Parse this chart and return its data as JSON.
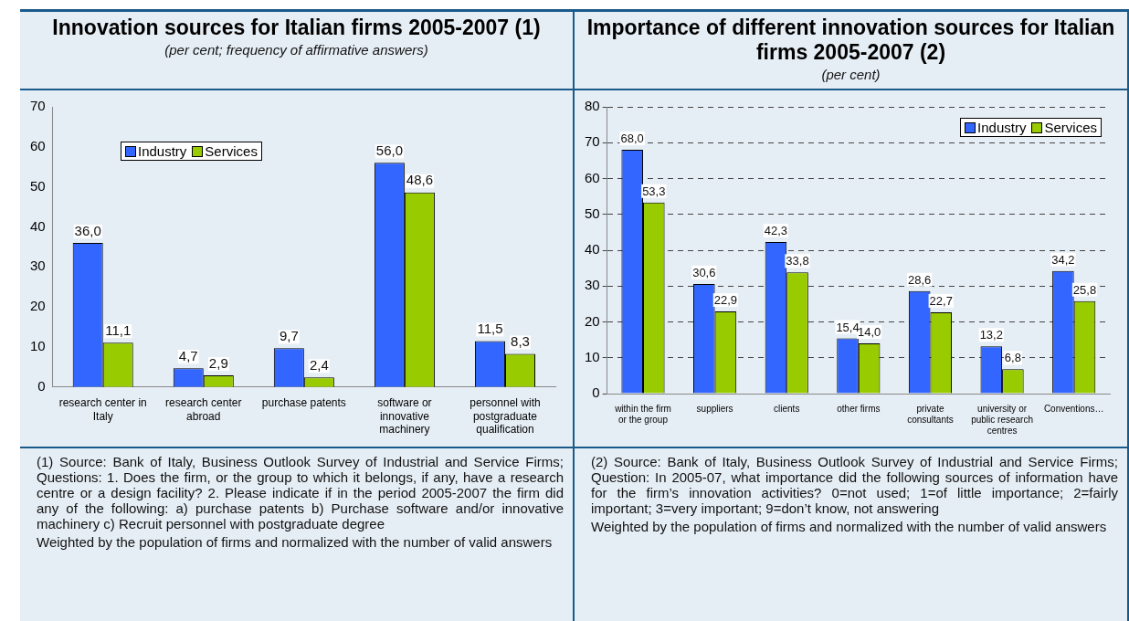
{
  "chart_data": [
    {
      "type": "bar",
      "title": "Innovation sources for Italian firms 2005-2007 (1)",
      "subtitle": "(per cent; frequency of affirmative answers)",
      "categories": [
        "research center in Italy",
        "research center abroad",
        "purchase patents",
        "software or innovative machinery",
        "personnel with postgraduate qualification"
      ],
      "series": [
        {
          "name": "Industry",
          "color": "#3366ff",
          "values": [
            36.0,
            4.7,
            9.7,
            56.0,
            11.5
          ],
          "value_labels": [
            "36,0",
            "4,7",
            "9,7",
            "56,0",
            "11,5"
          ]
        },
        {
          "name": "Services",
          "color": "#99cc00",
          "values": [
            11.1,
            2.9,
            2.4,
            48.6,
            8.3
          ],
          "value_labels": [
            "11,1",
            "2,9",
            "2,4",
            "48,6",
            "8,3"
          ]
        }
      ],
      "ylim": [
        0,
        70
      ],
      "yticks": [
        0,
        10,
        20,
        30,
        40,
        50,
        60,
        70
      ],
      "grid": false,
      "legend": "top left",
      "annotations": [
        "(1) Source: Bank of Italy, Business Outlook Survey of Industrial and Service Firms; Questions: 1. Does the firm, or the group to which it belongs, if any, have a research centre or a design facility? 2. Please indicate if in the period 2005-2007 the firm did any of the following: a) purchase patents b) Purchase software and/or innovative machinery c) Recruit personnel with postgraduate degree",
        "Weighted by the population of firms and normalized with the number of valid answers"
      ]
    },
    {
      "type": "bar",
      "title": "Importance of different innovation sources for Italian firms 2005-2007 (2)",
      "subtitle": "(per cent)",
      "categories": [
        "within the firm or the group",
        "suppliers",
        "clients",
        "other firms",
        "private consultants",
        "university or public research centres",
        "Conventions…"
      ],
      "series": [
        {
          "name": "Industry",
          "color": "#3366ff",
          "values": [
            68.0,
            30.6,
            42.3,
            15.4,
            28.6,
            13.2,
            34.2
          ],
          "value_labels": [
            "68,0",
            "30,6",
            "42,3",
            "15,4",
            "28,6",
            "13,2",
            "34,2"
          ]
        },
        {
          "name": "Services",
          "color": "#99cc00",
          "values": [
            53.3,
            22.9,
            33.8,
            14.0,
            22.7,
            6.8,
            25.8
          ],
          "value_labels": [
            "53,3",
            "22,9",
            "33,8",
            "14,0",
            "22,7",
            "6,8",
            "25,8"
          ]
        }
      ],
      "ylim": [
        0,
        80
      ],
      "yticks": [
        0,
        10,
        20,
        30,
        40,
        50,
        60,
        70,
        80
      ],
      "grid": "y",
      "line_style": "dashed",
      "legend": "top right",
      "annotations": [
        "(2) Source: Bank of Italy, Business Outlook Survey of Industrial and Service Firms; Question: In 2005-07, what importance did the following sources of information have for the firm’s innovation activities? 0=not used; 1=of little importance; 2=fairly important; 3=very important; 9=don’t know, not answering",
        "Weighted by the population of firms and normalized with the number of valid answers"
      ]
    }
  ]
}
